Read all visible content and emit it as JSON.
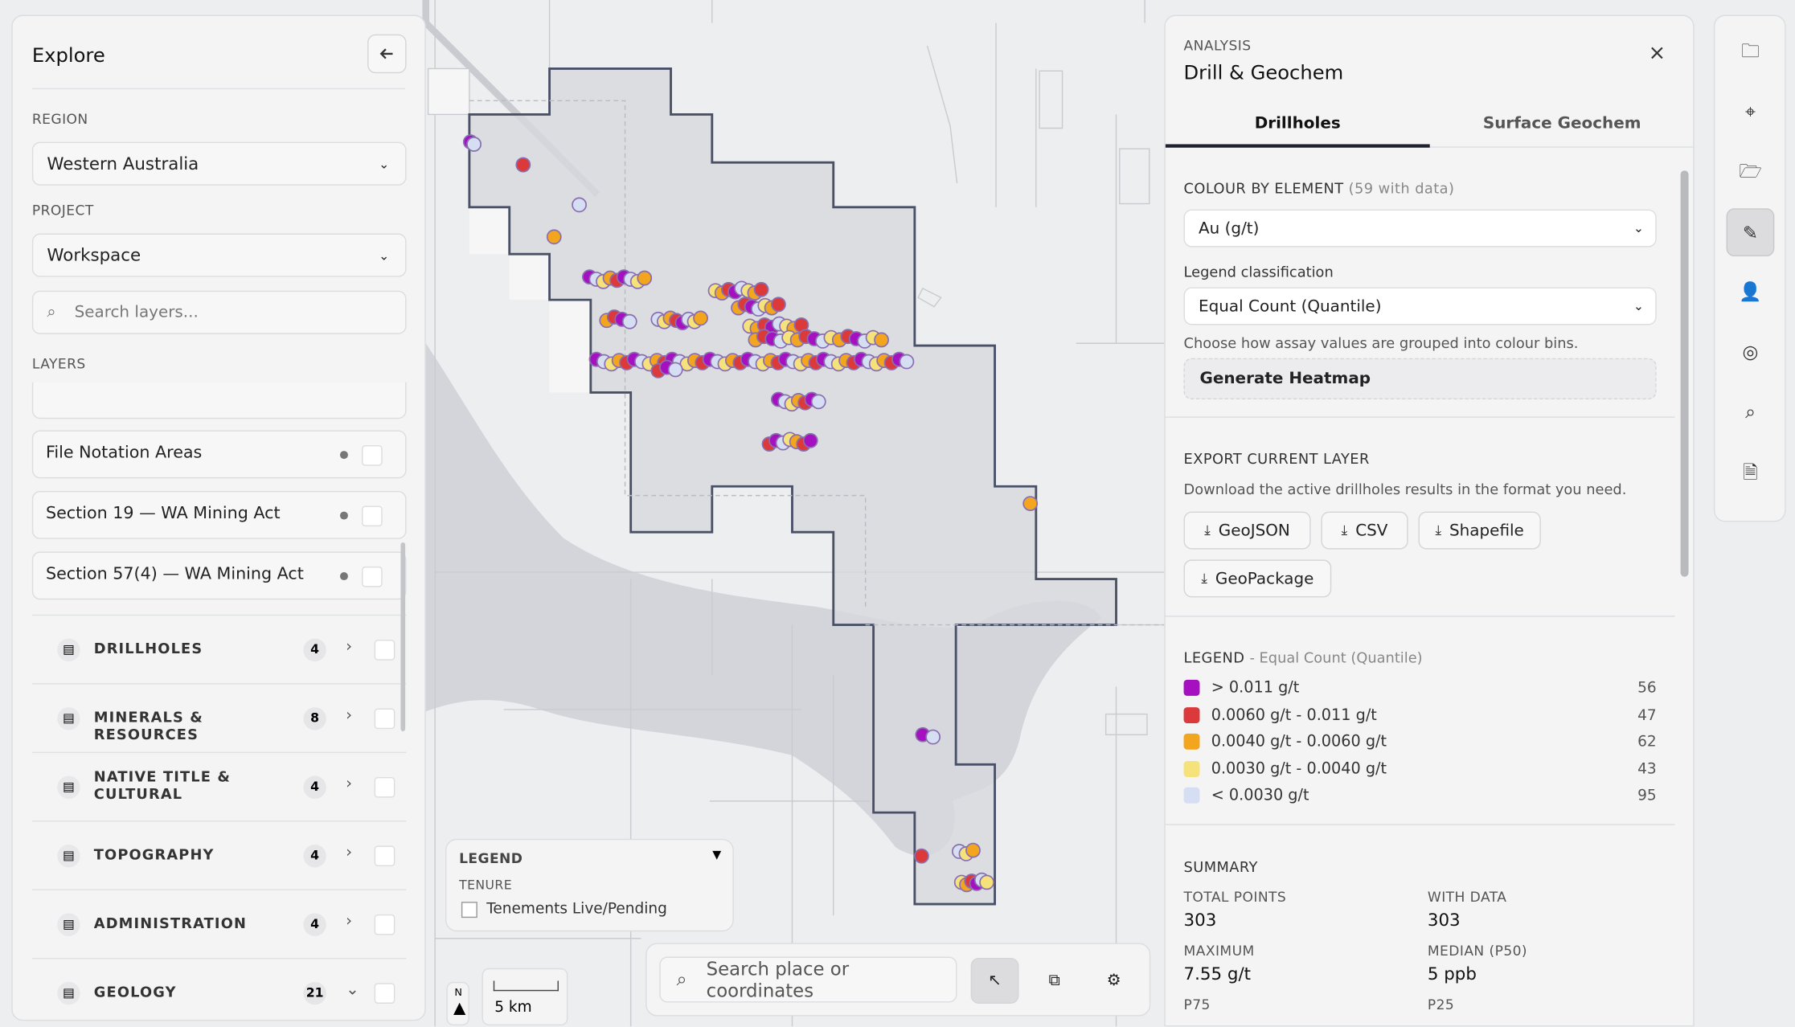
{
  "explore": {
    "title": "Explore",
    "region_label": "REGION",
    "region": "Western Australia",
    "project_label": "PROJECT",
    "project": "Workspace",
    "search_placeholder": "Search layers...",
    "layers_label": "LAYERS",
    "layers": [
      "File Notation Areas",
      "Section 19 — WA Mining Act",
      "Section 57(4) — WA Mining Act"
    ],
    "groups": [
      {
        "name": "DRILLHOLES",
        "count": 4
      },
      {
        "name": "MINERALS & RESOURCES",
        "count": 8
      },
      {
        "name": "NATIVE TITLE & CULTURAL",
        "count": 4
      },
      {
        "name": "TOPOGRAPHY",
        "count": 4
      },
      {
        "name": "ADMINISTRATION",
        "count": 4
      },
      {
        "name": "GEOLOGY",
        "count": 21
      }
    ]
  },
  "map": {
    "legend_title": "LEGEND",
    "legend_section": "TENURE",
    "legend_item": "Tenements Live/Pending",
    "north": "N",
    "scale": "5 km",
    "search_placeholder": "Search place or coordinates"
  },
  "analysis": {
    "kicker": "ANALYSIS",
    "title": "Drill & Geochem",
    "tabs": [
      "Drillholes",
      "Surface Geochem"
    ],
    "colour_label": "COLOUR BY ELEMENT",
    "colour_note": "(59 with data)",
    "element": "Au (g/t)",
    "classification_label": "Legend classification",
    "classification": "Equal Count (Quantile)",
    "hint": "Choose how assay values are grouped into colour bins.",
    "heatmap_button": "Generate Heatmap",
    "export_label": "EXPORT CURRENT LAYER",
    "export_hint": "Download the active drillholes results in the format you need.",
    "export_buttons": [
      "GeoJSON",
      "CSV",
      "Shapefile",
      "GeoPackage"
    ],
    "legend_label": "LEGEND",
    "legend_note": "- Equal Count (Quantile)",
    "legend": [
      {
        "label": "> 0.011 g/t",
        "color": "#a511c0",
        "count": 56
      },
      {
        "label": "0.0060 g/t - 0.011 g/t",
        "color": "#dc3a3a",
        "count": 47
      },
      {
        "label": "0.0040 g/t - 0.0060 g/t",
        "color": "#f2a51d",
        "count": 62
      },
      {
        "label": "0.0030 g/t - 0.0040 g/t",
        "color": "#f6e27a",
        "count": 43
      },
      {
        "label": "< 0.0030 g/t",
        "color": "#d5def2",
        "count": 95
      }
    ],
    "summary_label": "SUMMARY",
    "summary": [
      {
        "label": "TOTAL POINTS",
        "value": 303
      },
      {
        "label": "WITH DATA",
        "value": 303
      },
      {
        "label": "MAXIMUM",
        "value": "7.55 g/t"
      },
      {
        "label": "MEDIAN (P50)",
        "value": "5 ppb"
      },
      {
        "label": "P75"
      },
      {
        "label": "P25"
      }
    ]
  }
}
